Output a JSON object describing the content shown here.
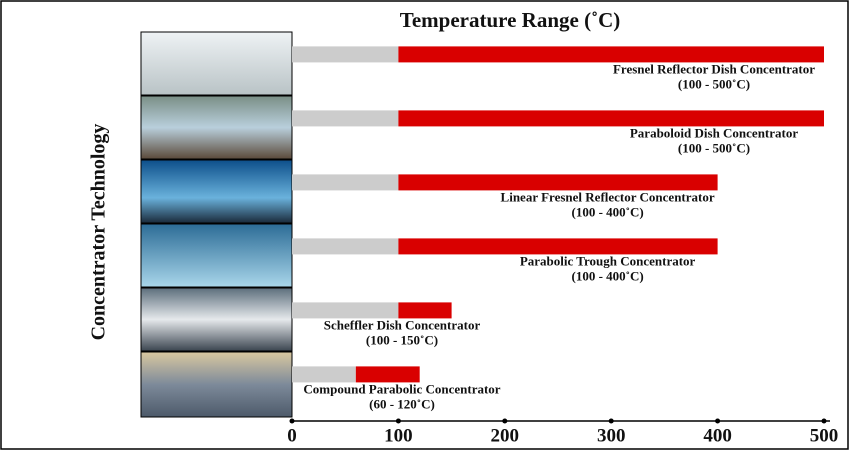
{
  "chart_data": {
    "type": "range-bar",
    "title": "Temperature Range (˚C)",
    "y_label": "Concentrator Technology",
    "categories": [
      "Fresnel Reflector Dish Concentrator",
      "Paraboloid Dish Concentrator",
      "Linear Fresnel Reflector Concentrator",
      "Parabolic Trough Concentrator",
      "Scheffler Dish Concentrator",
      "Compound Parabolic Concentrator"
    ],
    "low": [
      100,
      100,
      100,
      100,
      100,
      60
    ],
    "high": [
      500,
      500,
      400,
      400,
      150,
      120
    ],
    "value_labels": [
      "(100 - 500˚C)",
      "(100 - 500˚C)",
      "(100 - 400˚C)",
      "(100 - 400˚C)",
      "(100 - 150˚C)",
      "(60 - 120˚C)"
    ],
    "color": "#d90000",
    "base_color": "#cccccc",
    "xlim": [
      0,
      500
    ],
    "xticks": [
      0,
      100,
      200,
      300,
      400,
      500
    ]
  }
}
